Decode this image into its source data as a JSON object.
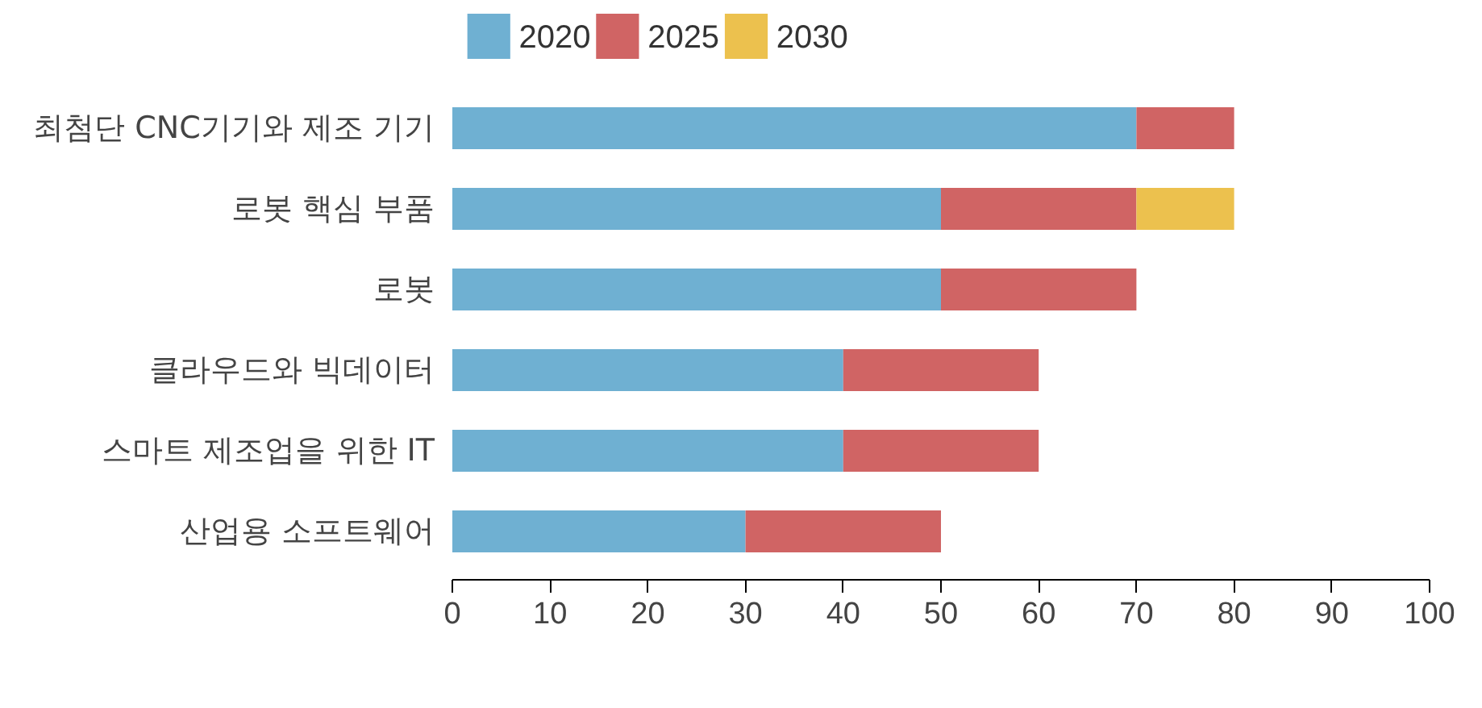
{
  "chart_data": {
    "type": "bar",
    "orientation": "horizontal",
    "stacked": true,
    "categories": [
      "최첨단 CNC기기와 제조 기기",
      "로봇 핵심 부품",
      "로봇",
      "클라우드와 빅데이터",
      "스마트 제조업을 위한 IT",
      "산업용 소프트웨어"
    ],
    "series": [
      {
        "name": "2020",
        "color": "#6fb0d2",
        "values": [
          70,
          50,
          50,
          40,
          40,
          30
        ]
      },
      {
        "name": "2025",
        "color": "#d06464",
        "values": [
          10,
          20,
          20,
          20,
          20,
          20
        ]
      },
      {
        "name": "2030",
        "color": "#ecc14e",
        "values": [
          null,
          10,
          null,
          null,
          null,
          null
        ]
      }
    ],
    "xlim": [
      0,
      100
    ],
    "xticks": [
      0,
      10,
      20,
      30,
      40,
      50,
      60,
      70,
      80,
      90,
      100
    ],
    "grid": false,
    "legend": "top left"
  }
}
